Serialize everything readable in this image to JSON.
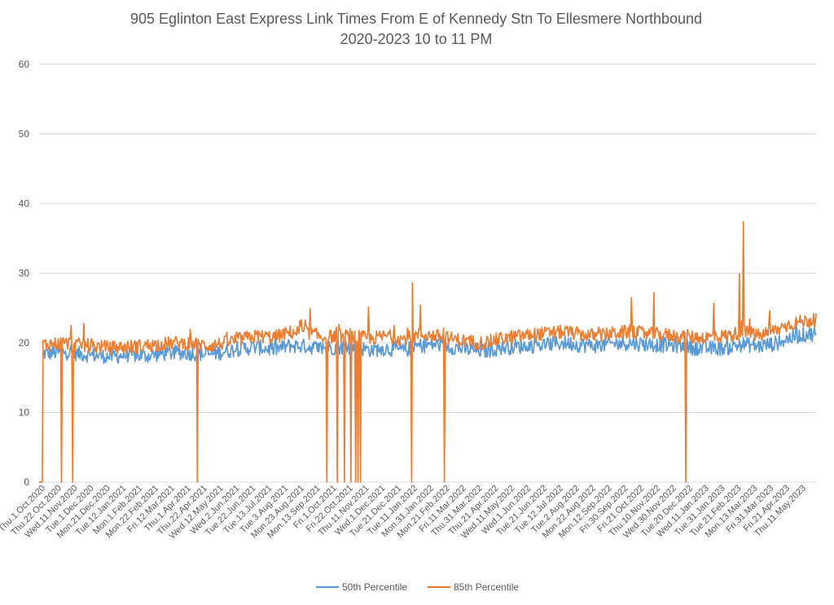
{
  "chart_data": {
    "type": "line",
    "title": "905 Eglinton East Express Link Times From E of Kennedy Stn To Ellesmere Northbound",
    "subtitle": "2020-2023 10 to 11 PM",
    "xlabel": "",
    "ylabel": "",
    "ylim": [
      0,
      60
    ],
    "yticks": [
      0,
      10,
      20,
      30,
      40,
      50,
      60
    ],
    "grid": true,
    "legend_position": "bottom",
    "x_start": "2020-10-01",
    "x_end": "2023-05-31",
    "x_tick_labels": [
      "Thu.1.Oct.2020",
      "Thu.22.Oct.2020",
      "Wed.11.Nov.2020",
      "Tue.1.Dec.2020",
      "Mon.21.Dec.2020",
      "Tue.12.Jan.2021",
      "Mon.1.Feb.2021",
      "Mon.22.Feb.2021",
      "Fri.12.Mar.2021",
      "Thu.1.Apr.2021",
      "Thu.22.Apr.2021",
      "Wed.12.May.2021",
      "Wed.2.Jun.2021",
      "Tue.22.Jun.2021",
      "Tue.13.Jul.2021",
      "Tue.3.Aug.2021",
      "Mon.23.Aug.2021",
      "Mon.13.Sep.2021",
      "Fri.1.Oct.2021",
      "Fri.22.Oct.2021",
      "Thu.11.Nov.2021",
      "Wed.1.Dec.2021",
      "Tue.21.Dec.2021",
      "Tue.11.Jan.2022",
      "Mon.31.Jan.2022",
      "Mon.21.Feb.2022",
      "Fri.11.Mar.2022",
      "Thu.31.Mar.2022",
      "Thu.21.Apr.2022",
      "Wed.11.May.2022",
      "Wed.1.Jun.2022",
      "Tue.21.Jun.2022",
      "Tue.12.Jul.2022",
      "Tue.2.Aug.2022",
      "Mon.22.Aug.2022",
      "Mon.12.Sep.2022",
      "Fri.30.Sep.2022",
      "Fri.21.Oct.2022",
      "Thu.10.Nov.2022",
      "Wed.30.Nov.2022",
      "Tue.20.Dec.2022",
      "Wed.11.Jan.2023",
      "Tue.31.Jan.2023",
      "Tue.21.Feb.2023",
      "Mon.13.Mar.2023",
      "Fri.31.Mar.2023",
      "Fri.21.Apr.2023",
      "Thu.11.May.2023"
    ],
    "series": [
      {
        "name": "50th Percentile",
        "color": "#5B9BD5",
        "base_values": [
          18.5,
          18.7,
          18.4,
          18.2,
          18.0,
          18.3,
          18.1,
          18.4,
          18.6,
          18.5,
          18.3,
          18.8,
          19.2,
          19.4,
          19.0,
          19.6,
          19.5,
          19.2,
          19.4,
          19.3,
          19.0,
          19.2,
          18.9,
          19.6,
          19.8,
          19.4,
          19.0,
          18.8,
          19.3,
          19.5,
          19.6,
          19.8,
          20.0,
          19.7,
          19.6,
          19.9,
          20.0,
          19.8,
          19.7,
          19.6,
          19.3,
          19.2,
          19.3,
          19.8,
          19.5,
          19.9,
          20.8,
          21.3
        ],
        "dropouts": [],
        "spikes": []
      },
      {
        "name": "85th Percentile",
        "color": "#ED7D31",
        "base_values": [
          19.8,
          20.0,
          19.7,
          19.5,
          19.3,
          19.4,
          19.6,
          19.8,
          20.0,
          19.9,
          19.6,
          20.0,
          20.6,
          21.0,
          20.8,
          21.5,
          21.6,
          20.8,
          21.0,
          20.9,
          20.6,
          21.0,
          20.5,
          21.2,
          21.0,
          20.6,
          20.2,
          20.0,
          20.6,
          20.9,
          21.2,
          21.4,
          21.6,
          21.2,
          21.0,
          21.4,
          21.6,
          21.3,
          21.2,
          21.0,
          20.8,
          20.8,
          21.0,
          21.6,
          21.0,
          21.8,
          22.8,
          23.2
        ],
        "dropouts": [
          "2020-10-02",
          "2020-10-05",
          "2020-10-29",
          "2020-11-12",
          "2021-04-17",
          "2021-09-26",
          "2021-10-09",
          "2021-10-18",
          "2021-10-26",
          "2021-11-01",
          "2021-11-04",
          "2021-11-07",
          "2022-01-10",
          "2022-02-20",
          "2022-12-19"
        ],
        "spikes": [
          {
            "date": "2020-11-10",
            "value": 22.5
          },
          {
            "date": "2020-11-26",
            "value": 22.8
          },
          {
            "date": "2021-08-25",
            "value": 23.3
          },
          {
            "date": "2021-09-05",
            "value": 24.9
          },
          {
            "date": "2021-11-17",
            "value": 25.1
          },
          {
            "date": "2022-01-11",
            "value": 28.6
          },
          {
            "date": "2022-01-21",
            "value": 25.4
          },
          {
            "date": "2022-10-12",
            "value": 26.5
          },
          {
            "date": "2022-11-09",
            "value": 27.2
          },
          {
            "date": "2022-12-19",
            "value": 25.3
          },
          {
            "date": "2023-01-23",
            "value": 25.7
          },
          {
            "date": "2023-02-24",
            "value": 29.9
          },
          {
            "date": "2023-03-01",
            "value": 37.4
          },
          {
            "date": "2023-03-09",
            "value": 23.4
          },
          {
            "date": "2023-04-03",
            "value": 24.6
          }
        ]
      }
    ]
  }
}
